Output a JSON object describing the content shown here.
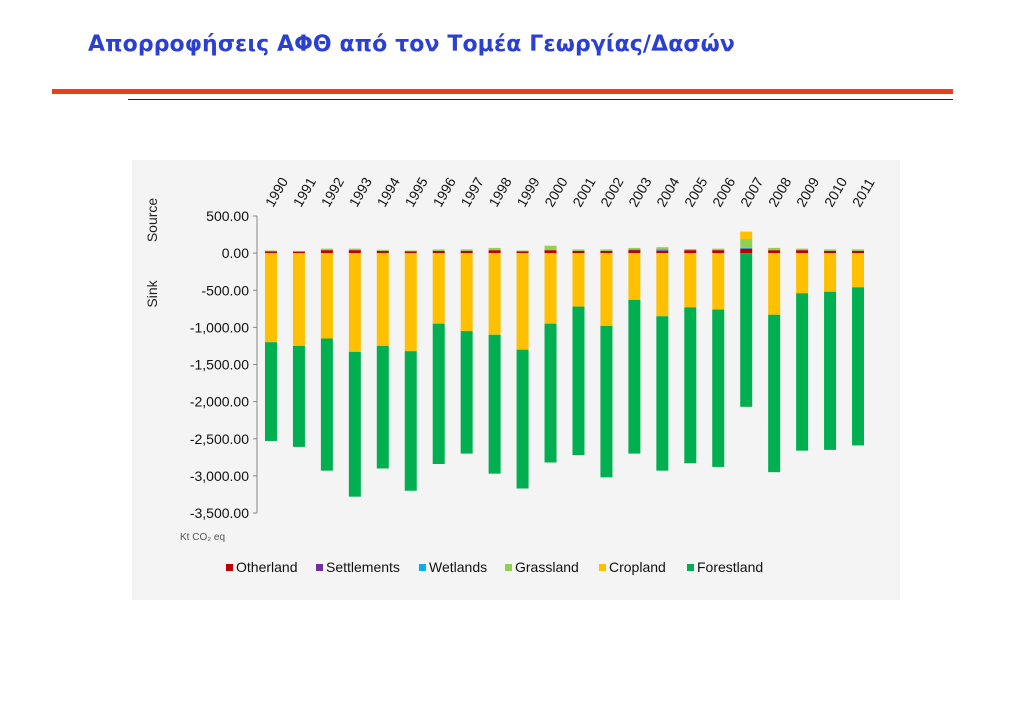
{
  "slide": {
    "title": "Απορροφήσεις ΑΦΘ από τον Τομέα Γεωργίας/Δασών"
  },
  "chart_data": {
    "type": "bar",
    "stacked": true,
    "categories": [
      "1990",
      "1991",
      "1992",
      "1993",
      "1994",
      "1995",
      "1996",
      "1997",
      "1998",
      "1999",
      "2000",
      "2001",
      "2002",
      "2003",
      "2004",
      "2005",
      "2006",
      "2007",
      "2008",
      "2009",
      "2010",
      "2011"
    ],
    "y_ticks": [
      "500.00",
      "0.00",
      "-500.00",
      "-1,000.00",
      "-1,500.00",
      "-2,000.00",
      "-2,500.00",
      "-3,000.00",
      "-3,500.00"
    ],
    "ylim": [
      -3500,
      500
    ],
    "ylabel_source": "Source",
    "ylabel_sink": "Sink",
    "unit_label": "Kt CO₂ eq",
    "grid": false,
    "legend_position": "bottom",
    "series": [
      {
        "name": "Otherland",
        "color": "#c00000",
        "values": [
          25,
          20,
          40,
          40,
          30,
          25,
          30,
          30,
          40,
          25,
          40,
          30,
          30,
          40,
          30,
          40,
          40,
          60,
          40,
          40,
          30,
          30
        ]
      },
      {
        "name": "Settlements",
        "color": "#7030a0",
        "values": [
          0,
          0,
          0,
          0,
          0,
          0,
          0,
          0,
          0,
          0,
          0,
          0,
          0,
          5,
          10,
          0,
          0,
          0,
          0,
          0,
          0,
          0
        ]
      },
      {
        "name": "Wetlands",
        "color": "#00b0f0",
        "values": [
          0,
          0,
          0,
          0,
          0,
          0,
          0,
          0,
          0,
          0,
          0,
          0,
          0,
          5,
          10,
          0,
          0,
          10,
          0,
          0,
          0,
          0
        ]
      },
      {
        "name": "Grassland",
        "color": "#92d050",
        "values": [
          10,
          10,
          20,
          20,
          15,
          10,
          20,
          20,
          30,
          10,
          60,
          20,
          20,
          20,
          30,
          15,
          20,
          120,
          30,
          20,
          20,
          20
        ]
      },
      {
        "name": "Cropland",
        "color": "#ffc000",
        "values": [
          -1200,
          -1250,
          -1150,
          -1330,
          -1250,
          -1320,
          -950,
          -1050,
          -1100,
          -1300,
          -950,
          -720,
          -980,
          -630,
          -850,
          -730,
          -760,
          100,
          -830,
          -540,
          -520,
          -460
        ]
      },
      {
        "name": "Forestland",
        "color": "#00b050",
        "values": [
          -1330,
          -1360,
          -1780,
          -1950,
          -1650,
          -1880,
          -1890,
          -1650,
          -1870,
          -1870,
          -1870,
          -2000,
          -2040,
          -2070,
          -2080,
          -2100,
          -2120,
          -2070,
          -2120,
          -2120,
          -2130,
          -2130
        ]
      }
    ]
  }
}
